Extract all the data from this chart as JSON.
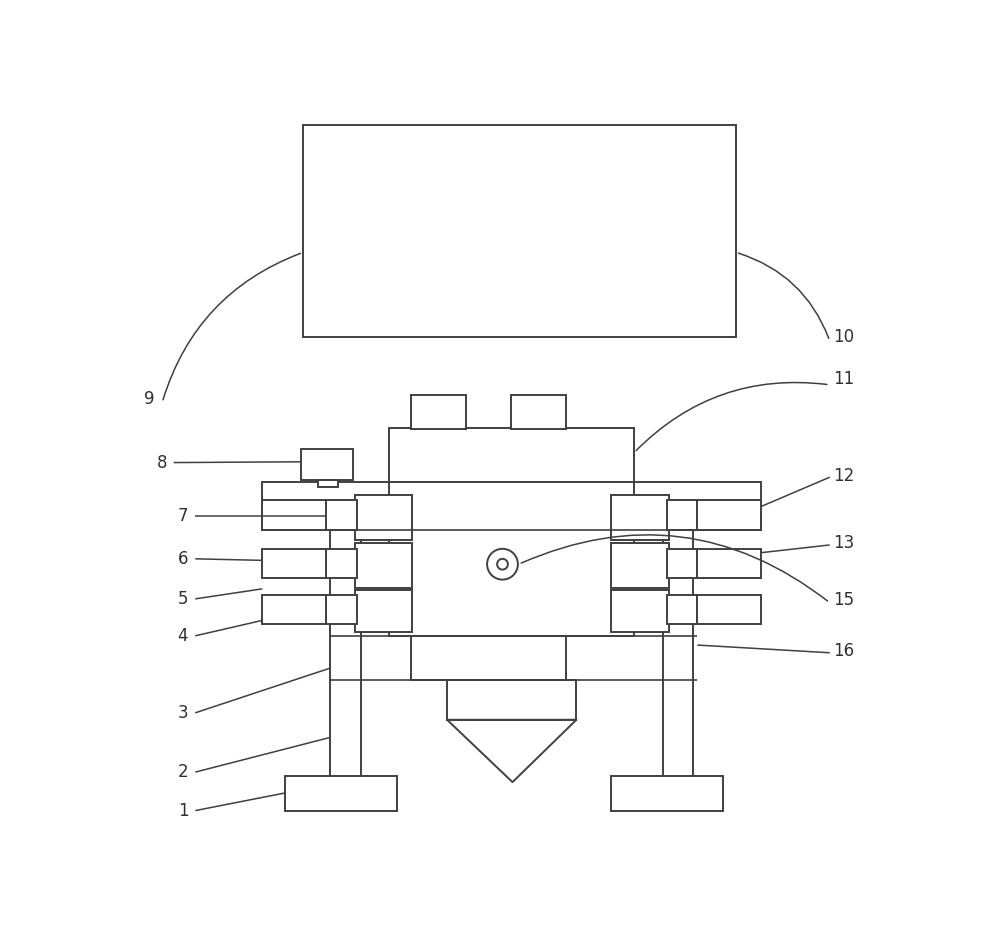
{
  "bg_color": "#ffffff",
  "lc": "#404040",
  "lw": 1.4,
  "fig_width": 10.0,
  "fig_height": 9.48
}
